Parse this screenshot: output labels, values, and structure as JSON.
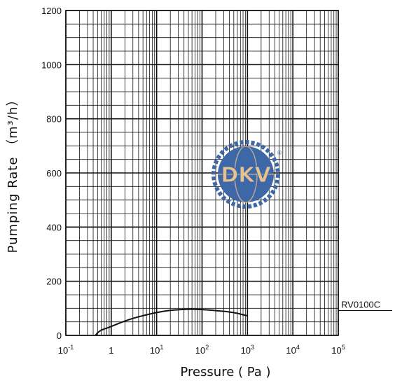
{
  "chart_data": {
    "type": "line",
    "xscale": "log",
    "xlabel": "Pressure ( Pa )",
    "ylabel": "Pumping Rate （m³/h）",
    "xlim": [
      0.1,
      100000
    ],
    "ylim": [
      0,
      1200
    ],
    "grid": true,
    "x_ticks": [
      {
        "value": 0.1,
        "base": "10",
        "exp": "-1"
      },
      {
        "value": 1,
        "base": "1",
        "exp": ""
      },
      {
        "value": 10,
        "base": "10",
        "exp": "1"
      },
      {
        "value": 100,
        "base": "10",
        "exp": "2"
      },
      {
        "value": 1000,
        "base": "10",
        "exp": "3"
      },
      {
        "value": 10000,
        "base": "10",
        "exp": "4"
      },
      {
        "value": 100000,
        "base": "10",
        "exp": "5"
      }
    ],
    "y_ticks": [
      "0",
      "200",
      "400",
      "600",
      "800",
      "1000",
      "1200"
    ],
    "series": [
      {
        "name": "RV0100C",
        "color": "#111111",
        "points": [
          {
            "x": 0.45,
            "y": 0
          },
          {
            "x": 0.5,
            "y": 10
          },
          {
            "x": 0.6,
            "y": 20
          },
          {
            "x": 0.8,
            "y": 27
          },
          {
            "x": 1,
            "y": 33
          },
          {
            "x": 1.5,
            "y": 45
          },
          {
            "x": 2,
            "y": 53
          },
          {
            "x": 3,
            "y": 63
          },
          {
            "x": 5,
            "y": 73
          },
          {
            "x": 10,
            "y": 85
          },
          {
            "x": 20,
            "y": 93
          },
          {
            "x": 50,
            "y": 97
          },
          {
            "x": 100,
            "y": 96
          },
          {
            "x": 200,
            "y": 92
          },
          {
            "x": 500,
            "y": 85
          },
          {
            "x": 1000,
            "y": 72
          }
        ]
      }
    ]
  },
  "watermark": {
    "text": "DKV",
    "registered_mark": "®",
    "colors": {
      "globe": "#3d67a7",
      "letters": "#e6c28f",
      "gear": "#3d67a7"
    }
  }
}
